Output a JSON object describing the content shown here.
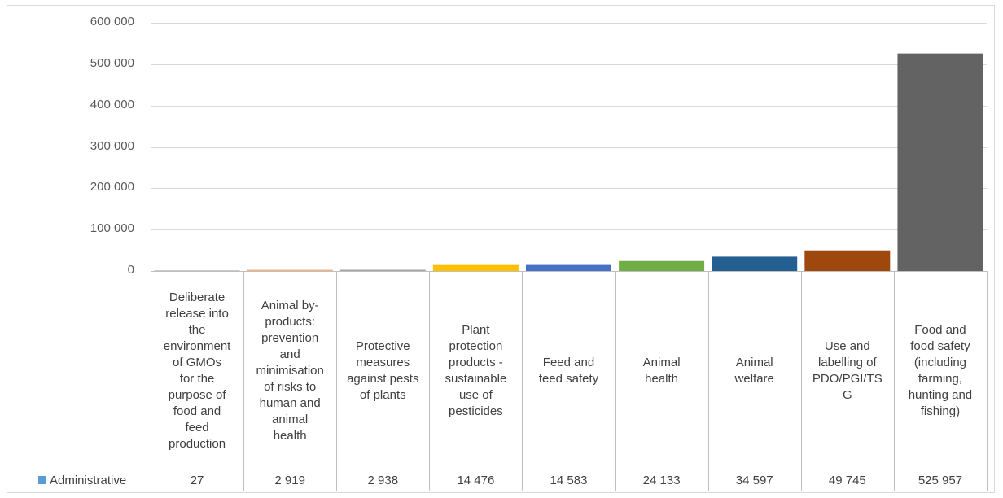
{
  "chart_data": {
    "type": "bar",
    "categories": [
      "Deliberate release into the environment of GMOs for the purpose of food and feed production",
      "Animal by-products: prevention and minimisation of risks to human and animal health",
      "Protective measures against pests of plants",
      "Plant protection products - sustainable use of pesticides",
      "Feed and feed safety",
      "Animal health",
      "Animal welfare",
      "Use and labelling of PDO/PGI/TSG",
      "Food and food safety (including farming, hunting and fishing)"
    ],
    "category_display": [
      "Deliberate\nrelease into\nthe\nenvironment\nof GMOs\nfor the\npurpose of\nfood and\nfeed\nproduction",
      "Animal by-\nproducts:\nprevention\nand\nminimisation\nof risks to\nhuman and\nanimal\nhealth",
      "Protective\nmeasures\nagainst pests\nof plants",
      "Plant\nprotection\nproducts -\nsustainable\nuse of\npesticides",
      "Feed and\nfeed safety",
      "Animal\nhealth",
      "Animal\nwelfare",
      "Use and\nlabelling of\nPDO/PGI/TS\nG",
      "Food and\nfood safety\n(including\nfarming,\nhunting and\nfishing)"
    ],
    "series": [
      {
        "name": "Administrative",
        "values": [
          27,
          2919,
          2938,
          14476,
          14583,
          24133,
          34597,
          49745,
          525957
        ],
        "value_labels": [
          "27",
          "2 919",
          "2 938",
          "14 476",
          "14 583",
          "24 133",
          "34 597",
          "49 745",
          "525 957"
        ]
      }
    ],
    "bar_colors": [
      "#a5a5a5",
      "#f4b183",
      "#a5a5a5",
      "#ffc000",
      "#4472c4",
      "#70ad47",
      "#255e91",
      "#9e480e",
      "#636363"
    ],
    "legend_color": "#5b9bd5",
    "ylim": [
      0,
      600000
    ],
    "yticks": [
      0,
      100000,
      200000,
      300000,
      400000,
      500000,
      600000
    ],
    "ytick_labels": [
      "0",
      "100 000",
      "200 000",
      "300 000",
      "400 000",
      "500 000",
      "600 000"
    ],
    "grid": true,
    "data_table": true
  }
}
